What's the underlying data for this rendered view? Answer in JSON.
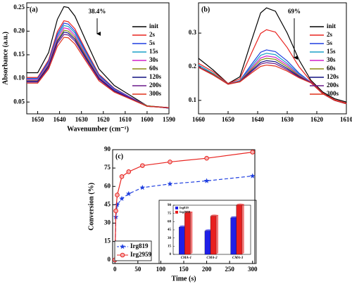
{
  "chart_data": [
    {
      "type": "line",
      "label": "(a)",
      "xlabel": "Wavenumber (cm⁻¹)",
      "ylabel": "Absorbance (a.u.)",
      "annotation": "38.4%",
      "xlim": [
        1655,
        1590
      ],
      "xticks": [
        1650,
        1640,
        1630,
        1620,
        1610,
        1600,
        1590
      ],
      "ylim": [
        0.025,
        0.26
      ],
      "yticks": [
        0.05,
        {
          "value": 0.1,
          "label": "0.10"
        },
        0.15,
        {
          "value": 0.2,
          "label": "0.20"
        },
        0.25
      ],
      "legend": "upper right",
      "x": [
        1655,
        1650,
        1645,
        1641,
        1638,
        1636,
        1633,
        1628,
        1622,
        1615,
        1608,
        1600,
        1590
      ],
      "series": [
        {
          "name": "init",
          "color": "#000000",
          "values": [
            0.112,
            0.112,
            0.155,
            0.225,
            0.252,
            0.25,
            0.232,
            0.18,
            0.12,
            0.085,
            0.065,
            0.042,
            0.037
          ]
        },
        {
          "name": "2s",
          "color": "#e8231f",
          "values": [
            0.102,
            0.102,
            0.139,
            0.199,
            0.222,
            0.22,
            0.205,
            0.16,
            0.109,
            0.079,
            0.061,
            0.042,
            0.037
          ]
        },
        {
          "name": "5s",
          "color": "#1f3fe0",
          "values": [
            0.1,
            0.1,
            0.136,
            0.194,
            0.217,
            0.215,
            0.2,
            0.157,
            0.107,
            0.078,
            0.061,
            0.042,
            0.037
          ]
        },
        {
          "name": "15s",
          "color": "#1aa0c8",
          "values": [
            0.098,
            0.098,
            0.133,
            0.19,
            0.212,
            0.21,
            0.196,
            0.154,
            0.105,
            0.076,
            0.06,
            0.042,
            0.038
          ]
        },
        {
          "name": "30s",
          "color": "#d020c8",
          "values": [
            0.097,
            0.097,
            0.131,
            0.186,
            0.207,
            0.205,
            0.191,
            0.15,
            0.103,
            0.075,
            0.06,
            0.042,
            0.038
          ]
        },
        {
          "name": "60s",
          "color": "#8a8a10",
          "values": [
            0.095,
            0.095,
            0.128,
            0.181,
            0.202,
            0.2,
            0.187,
            0.147,
            0.101,
            0.074,
            0.059,
            0.042,
            0.038
          ]
        },
        {
          "name": "120s",
          "color": "#101080",
          "values": [
            0.094,
            0.094,
            0.126,
            0.178,
            0.198,
            0.196,
            0.183,
            0.144,
            0.1,
            0.074,
            0.059,
            0.041,
            0.038
          ]
        },
        {
          "name": "200s",
          "color": "#6a1a8a",
          "values": [
            0.092,
            0.092,
            0.123,
            0.174,
            0.193,
            0.192,
            0.179,
            0.141,
            0.098,
            0.072,
            0.058,
            0.041,
            0.038
          ]
        },
        {
          "name": "300s",
          "color": "#e0301a",
          "values": [
            0.09,
            0.09,
            0.12,
            0.168,
            0.187,
            0.186,
            0.173,
            0.137,
            0.095,
            0.071,
            0.057,
            0.041,
            0.038
          ]
        }
      ]
    },
    {
      "type": "line",
      "label": "(b)",
      "annotation": "69%",
      "xlim": [
        1660,
        1610
      ],
      "xticks": [
        1660,
        1650,
        1640,
        1630,
        1620,
        1610
      ],
      "ylim": [
        0.06,
        0.39
      ],
      "yticks": [
        0.1,
        0.2,
        0.3
      ],
      "legend": "upper right",
      "x": [
        1660,
        1655,
        1650,
        1646,
        1642,
        1639,
        1637,
        1634,
        1630,
        1626,
        1622,
        1618,
        1614,
        1610
      ],
      "series": [
        {
          "name": "init",
          "color": "#000000",
          "values": [
            0.225,
            0.19,
            0.15,
            0.17,
            0.28,
            0.36,
            0.375,
            0.365,
            0.3,
            0.22,
            0.16,
            0.125,
            0.105,
            0.095
          ]
        },
        {
          "name": "2s",
          "color": "#e8231f",
          "values": [
            0.21,
            0.185,
            0.15,
            0.164,
            0.242,
            0.299,
            0.31,
            0.303,
            0.257,
            0.2,
            0.157,
            0.122,
            0.102,
            0.092
          ]
        },
        {
          "name": "5s",
          "color": "#1f3fe0",
          "values": [
            0.205,
            0.18,
            0.148,
            0.159,
            0.208,
            0.243,
            0.25,
            0.245,
            0.217,
            0.181,
            0.154,
            0.12,
            0.1,
            0.09
          ]
        },
        {
          "name": "15s",
          "color": "#1aa0c8",
          "values": [
            0.205,
            0.18,
            0.148,
            0.158,
            0.202,
            0.234,
            0.24,
            0.236,
            0.21,
            0.178,
            0.154,
            0.12,
            0.1,
            0.09
          ]
        },
        {
          "name": "30s",
          "color": "#d020c8",
          "values": [
            0.2,
            0.178,
            0.148,
            0.157,
            0.197,
            0.226,
            0.232,
            0.228,
            0.205,
            0.175,
            0.154,
            0.12,
            0.1,
            0.09
          ]
        },
        {
          "name": "60s",
          "color": "#8a8a10",
          "values": [
            0.2,
            0.178,
            0.148,
            0.157,
            0.193,
            0.22,
            0.225,
            0.222,
            0.2,
            0.173,
            0.153,
            0.12,
            0.1,
            0.09
          ]
        },
        {
          "name": "120s",
          "color": "#101080",
          "values": [
            0.2,
            0.176,
            0.148,
            0.156,
            0.189,
            0.213,
            0.218,
            0.215,
            0.195,
            0.171,
            0.153,
            0.12,
            0.1,
            0.09
          ]
        },
        {
          "name": "200s",
          "color": "#6a1a8a",
          "values": [
            0.2,
            0.176,
            0.148,
            0.156,
            0.186,
            0.208,
            0.212,
            0.209,
            0.191,
            0.169,
            0.153,
            0.12,
            0.1,
            0.09
          ]
        },
        {
          "name": "300s",
          "color": "#e0301a",
          "values": [
            0.198,
            0.175,
            0.148,
            0.155,
            0.182,
            0.201,
            0.205,
            0.202,
            0.187,
            0.167,
            0.152,
            0.12,
            0.1,
            0.09
          ]
        }
      ]
    },
    {
      "type": "line",
      "label": "(c)",
      "xlabel": "Time (s)",
      "ylabel": "Conversion (%)",
      "xlim": [
        -5,
        305
      ],
      "xticks": [
        0,
        50,
        100,
        150,
        200,
        250,
        300
      ],
      "ylim": [
        -3,
        90
      ],
      "yticks": [
        0,
        15,
        30,
        45,
        60,
        75,
        90
      ],
      "legend": "lower left",
      "x": [
        0,
        2,
        5,
        15,
        30,
        60,
        120,
        200,
        300
      ],
      "series": [
        {
          "name": "Irg819",
          "color": "#1f3fe0",
          "marker": "star",
          "linestyle": "dashed",
          "values": [
            0,
            35,
            45,
            50,
            54,
            59,
            62,
            64.5,
            68.5
          ]
        },
        {
          "name": "Irg2959",
          "color": "#e8231f",
          "marker": "circle",
          "linestyle": "solid",
          "values": [
            0,
            40,
            53,
            68,
            72,
            77,
            80,
            83,
            88
          ]
        }
      ]
    },
    {
      "type": "bar",
      "ylim": [
        0,
        90
      ],
      "yticks": [
        0,
        15,
        30,
        45,
        60,
        75,
        90
      ],
      "legend": "upper left",
      "categories": [
        "CMA-1",
        "CMA-2",
        "CMA-3"
      ],
      "series": [
        {
          "name": "Irg819",
          "color": "#1f1fe8",
          "values": [
            50,
            43,
            67
          ]
        },
        {
          "name": "Irg2959",
          "color": "#e81f1f",
          "values": [
            76,
            70,
            90
          ]
        }
      ]
    }
  ]
}
